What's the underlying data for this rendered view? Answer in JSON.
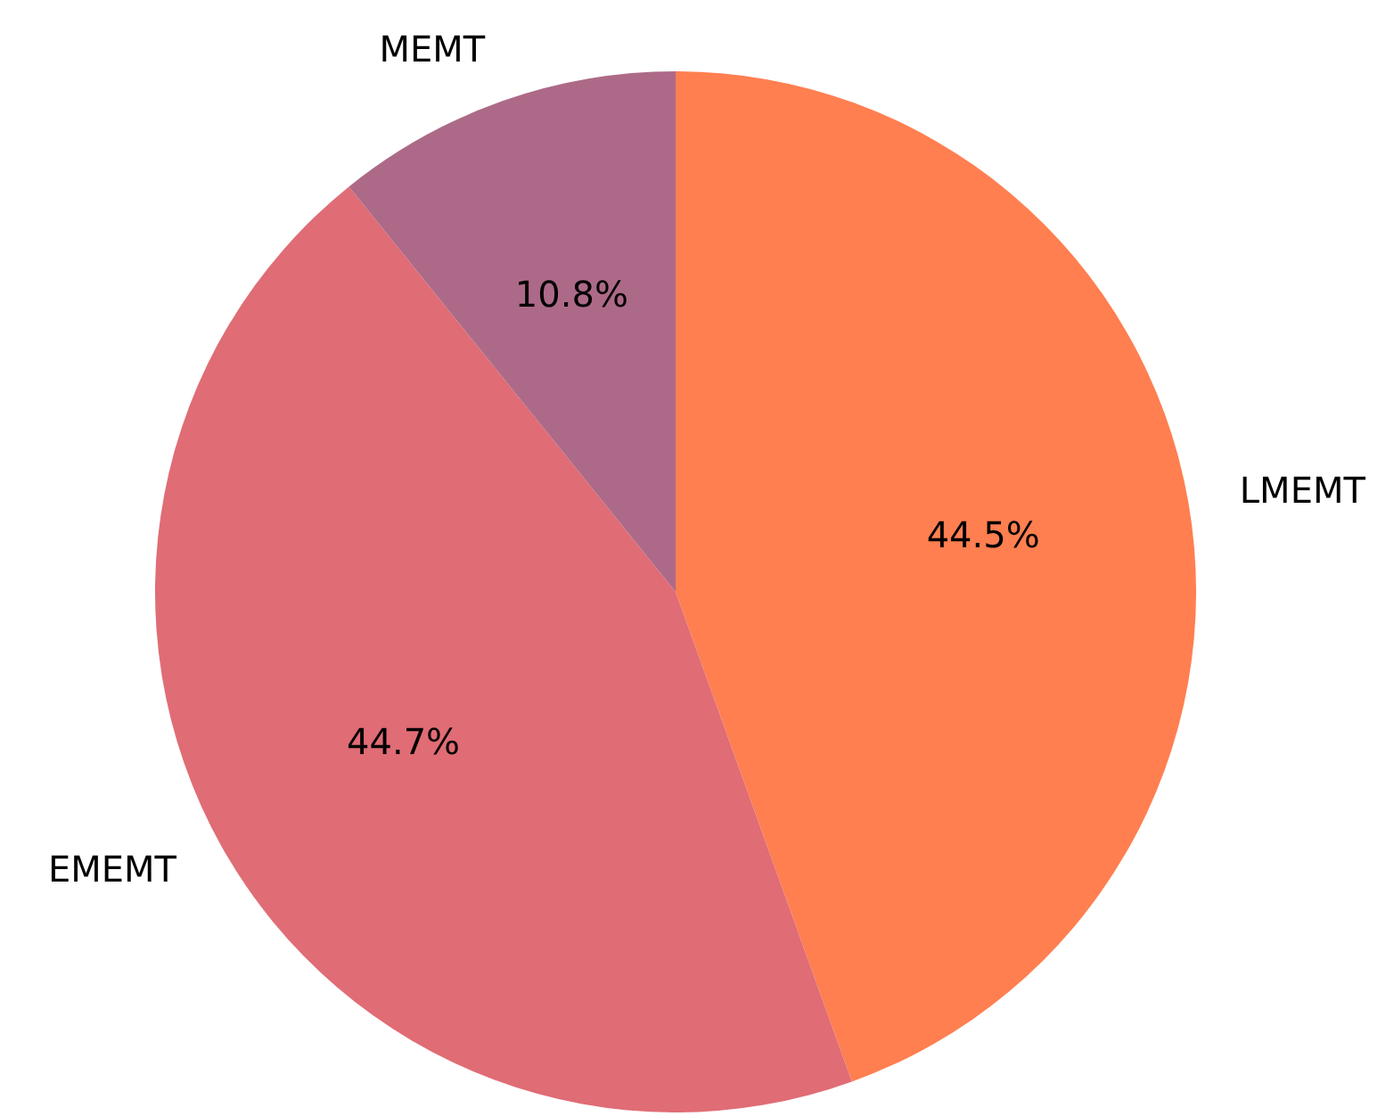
{
  "chart_data": {
    "type": "pie",
    "categories": [
      "LMEMT",
      "EMEMT",
      "MEMT"
    ],
    "values": [
      44.5,
      44.7,
      10.8
    ],
    "colors": [
      "#ff7f50",
      "#e06c75",
      "#ad6a88"
    ],
    "value_labels": [
      "44.5%",
      "44.7%",
      "10.8%"
    ],
    "legend": false
  }
}
